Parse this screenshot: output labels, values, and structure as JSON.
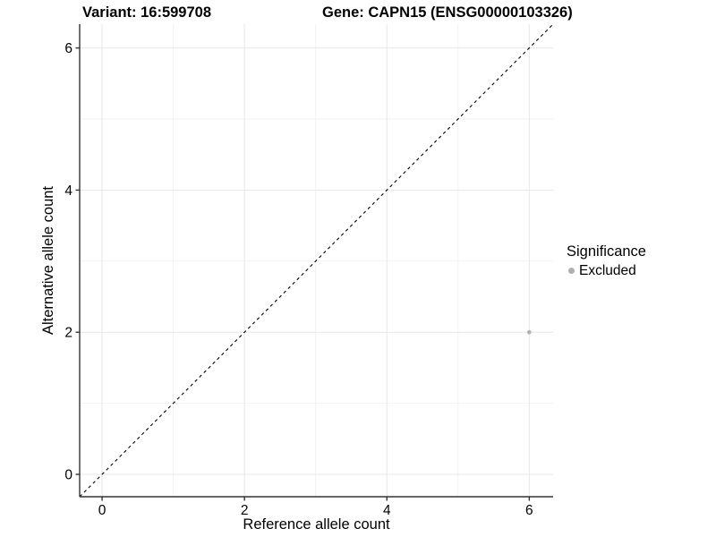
{
  "chart_data": {
    "type": "scatter",
    "title_left": "Variant: 16:599708",
    "title_right": "Gene: CAPN15 (ENSG00000103326)",
    "xlabel": "Reference allele count",
    "ylabel": "Alternative allele count",
    "xticks": [
      0,
      2,
      4,
      6
    ],
    "yticks": [
      0,
      2,
      4,
      6
    ],
    "xminor": [
      1,
      3,
      5
    ],
    "yminor": [
      1,
      3,
      5
    ],
    "xlim": [
      -0.315,
      6.335
    ],
    "ylim": [
      -0.315,
      6.335
    ],
    "grid": true,
    "points": [
      {
        "x": 6,
        "y": 2,
        "significance": "Excluded"
      }
    ],
    "reference_line": {
      "equation": "y = x",
      "style": "dashed",
      "color": "#000000"
    },
    "legend": {
      "title": "Significance",
      "position": "right",
      "items": [
        {
          "label": "Excluded",
          "color": "#b0b0b0"
        }
      ]
    },
    "colors": {
      "point": "#b0b0b0",
      "grid_major": "#e7e7e7",
      "grid_minor": "#f2f2f2",
      "axis": "#333333",
      "text": "#000000",
      "background": "#ffffff"
    }
  }
}
